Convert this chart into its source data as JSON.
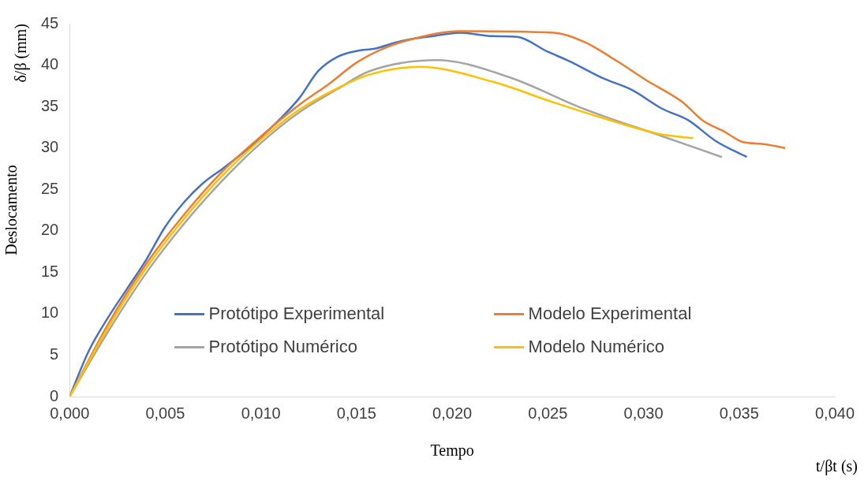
{
  "chart_data": {
    "type": "line",
    "xlabel": "Tempo",
    "ylabel": "Deslocamento",
    "annotations": [
      "t/βt (s)",
      "δ/β (mm)"
    ],
    "xlim": [
      0,
      0.04
    ],
    "xticks": [
      {
        "value": 0,
        "label": "0,000"
      },
      {
        "value": 0.005,
        "label": "0,005"
      },
      {
        "value": 0.01,
        "label": "0,010"
      },
      {
        "value": 0.015,
        "label": "0,015"
      },
      {
        "value": 0.02,
        "label": "0,020"
      },
      {
        "value": 0.025,
        "label": "0,025"
      },
      {
        "value": 0.03,
        "label": "0,030"
      },
      {
        "value": 0.035,
        "label": "0,035"
      },
      {
        "value": 0.04,
        "label": "0,040"
      }
    ],
    "ylim": [
      0,
      45
    ],
    "yticks": [
      0,
      5,
      10,
      15,
      20,
      25,
      30,
      35,
      40,
      45
    ],
    "grid": false,
    "legend": "bottom",
    "marker": "none",
    "line_style": "solid",
    "series": [
      {
        "name": "Protótipo Experimental",
        "color": "#4472c4",
        "x": [
          0,
          0.001,
          0.002,
          0.003,
          0.004,
          0.005,
          0.006,
          0.007,
          0.008,
          0.009,
          0.01,
          0.011,
          0.012,
          0.013,
          0.014,
          0.015,
          0.016,
          0.017,
          0.018,
          0.019,
          0.0204,
          0.0221,
          0.0234,
          0.025,
          0.0261,
          0.0279,
          0.0294,
          0.031,
          0.0323,
          0.0338,
          0.0354
        ],
        "values": [
          0,
          5.5,
          9.5,
          13,
          16.5,
          20.5,
          23.5,
          25.8,
          27.5,
          29.3,
          31.3,
          33.5,
          36,
          39.3,
          41,
          41.7,
          42,
          42.7,
          43.2,
          43.5,
          43.9,
          43.5,
          43.4,
          41.6,
          40.5,
          38.4,
          37,
          34.7,
          33.4,
          30.8,
          28.9
        ]
      },
      {
        "name": "Modelo Experimental",
        "color": "#ed7d31",
        "x": [
          0,
          0.002,
          0.004,
          0.006,
          0.008,
          0.01,
          0.012,
          0.0136,
          0.015,
          0.0164,
          0.018,
          0.0204,
          0.0253,
          0.0269,
          0.0286,
          0.0302,
          0.032,
          0.0331,
          0.0342,
          0.0352,
          0.0362,
          0.0374
        ],
        "values": [
          0,
          8.7,
          16,
          22,
          27.2,
          31.4,
          35.2,
          37.8,
          40.3,
          42,
          43.2,
          44.1,
          43.9,
          42.8,
          40.5,
          38.1,
          35.6,
          33.3,
          32,
          30.7,
          30.5,
          30
        ]
      },
      {
        "name": "Protótipo Numérico",
        "color": "#a5a5a5",
        "x": [
          0,
          0.002,
          0.004,
          0.006,
          0.008,
          0.01,
          0.012,
          0.014,
          0.0156,
          0.0192,
          0.0229,
          0.0269,
          0.031,
          0.0341
        ],
        "values": [
          0,
          7.8,
          14.9,
          20.9,
          26.1,
          30.6,
          34.3,
          37.1,
          39.2,
          40.6,
          38.6,
          34.7,
          31.4,
          28.9
        ]
      },
      {
        "name": "Modelo Numérico",
        "color": "#ffc000",
        "x": [
          0,
          0.002,
          0.004,
          0.006,
          0.008,
          0.01,
          0.012,
          0.014,
          0.0156,
          0.0183,
          0.0221,
          0.0253,
          0.0286,
          0.031,
          0.0326
        ],
        "values": [
          0,
          8.3,
          15.5,
          21.5,
          26.7,
          31,
          34.6,
          37.2,
          38.8,
          39.8,
          38,
          35.5,
          33.1,
          31.6,
          31.2
        ]
      }
    ]
  }
}
